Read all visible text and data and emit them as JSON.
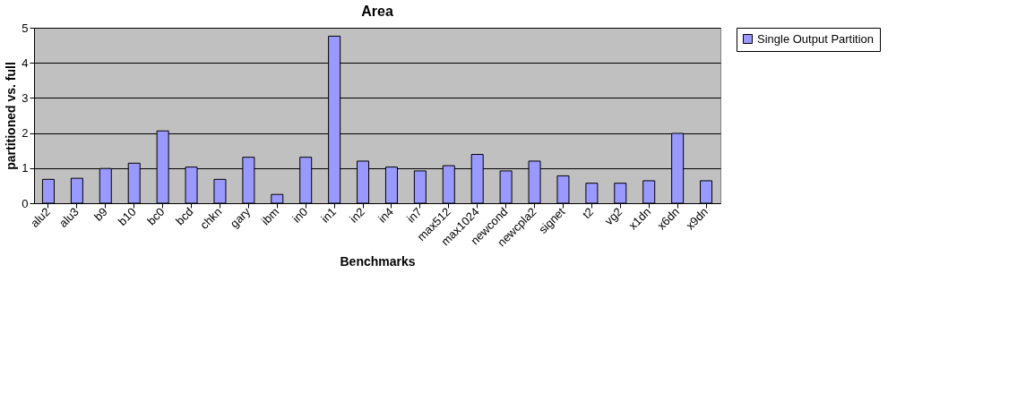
{
  "chart_data": {
    "type": "bar",
    "title": "Area",
    "xlabel": "Benchmarks",
    "ylabel": "partitioned vs. full",
    "categories": [
      "alu2",
      "alu3",
      "b9",
      "b10",
      "bc0",
      "bcd",
      "chkn",
      "gary",
      "ibm",
      "in0",
      "in1",
      "in2",
      "in4",
      "in7",
      "max512",
      "max1024",
      "newcond",
      "newcpla2",
      "signet",
      "t2",
      "vg2",
      "x1dn",
      "x6dn",
      "x9dn"
    ],
    "series": [
      {
        "name": "Single Output Partition",
        "color": "#9999ff",
        "values": [
          0.68,
          0.71,
          0.99,
          1.14,
          2.06,
          1.03,
          0.68,
          1.31,
          0.25,
          1.31,
          4.76,
          1.2,
          1.03,
          0.92,
          1.07,
          1.39,
          0.92,
          1.2,
          0.78,
          0.57,
          0.57,
          0.64,
          1.99,
          0.64
        ]
      }
    ],
    "ylim": [
      0,
      5
    ],
    "yticks": [
      0,
      1,
      2,
      3,
      4,
      5
    ],
    "grid": "y",
    "legend": "right"
  }
}
